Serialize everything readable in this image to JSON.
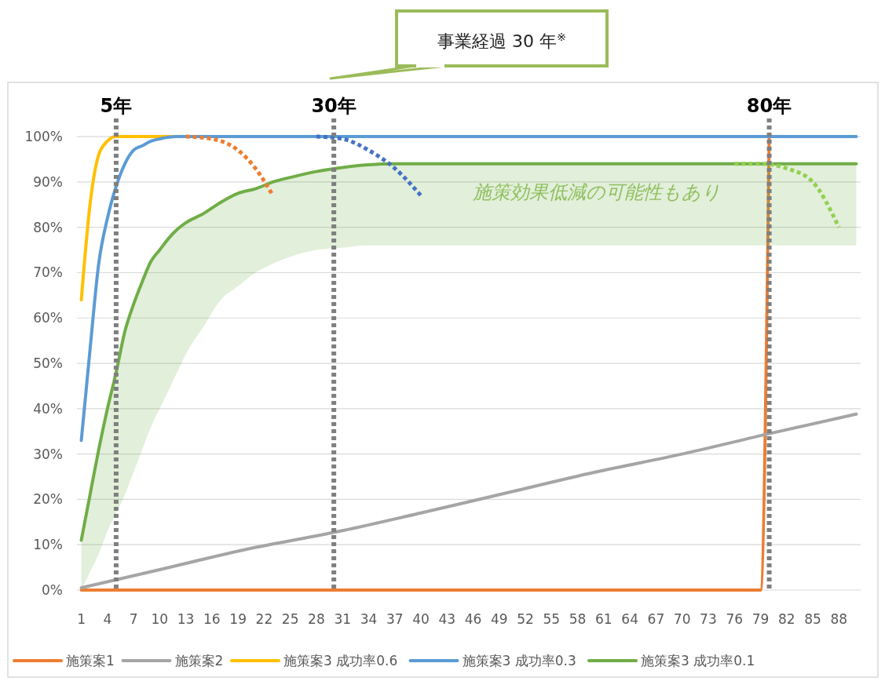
{
  "chart_data": {
    "type": "line",
    "xlim": [
      0.5,
      90.5
    ],
    "xticks": [
      1,
      4,
      7,
      10,
      13,
      16,
      19,
      22,
      25,
      28,
      31,
      34,
      37,
      40,
      43,
      46,
      49,
      52,
      55,
      58,
      61,
      64,
      67,
      70,
      73,
      76,
      79,
      82,
      85,
      88
    ],
    "ylim": [
      0,
      104
    ],
    "yticks": [
      {
        "value": 0,
        "label": "0%"
      },
      {
        "value": 10,
        "label": "10%"
      },
      {
        "value": 20,
        "label": "20%"
      },
      {
        "value": 30,
        "label": "30%"
      },
      {
        "value": 40,
        "label": "40%"
      },
      {
        "value": 50,
        "label": "50%"
      },
      {
        "value": 60,
        "label": "60%"
      },
      {
        "value": 70,
        "label": "70%"
      },
      {
        "value": 80,
        "label": "80%"
      },
      {
        "value": 90,
        "label": "90%"
      },
      {
        "value": 100,
        "label": "100%"
      }
    ],
    "grid": "y",
    "legend": "bottom",
    "line_style": "solid",
    "marker": "none",
    "series": [
      {
        "name": "施策案1",
        "color": "#ed7d31",
        "x": [
          1,
          79,
          80
        ],
        "values": [
          0,
          0,
          100
        ]
      },
      {
        "name": "施策案2",
        "color": "#a5a5a5",
        "x": [
          1,
          10,
          20,
          31,
          40,
          50,
          60,
          70,
          80,
          90
        ],
        "values": [
          0.5,
          4.5,
          9,
          13.1,
          17,
          21.5,
          26,
          30,
          34.5,
          38.8
        ]
      },
      {
        "name": "施策案3 成功率0.6",
        "color": "#ffc000",
        "x": [
          1,
          2,
          3,
          4,
          5,
          6,
          7,
          10,
          17
        ],
        "values": [
          64,
          85,
          96,
          99,
          100,
          100,
          100,
          100,
          100
        ]
      },
      {
        "name": "施策案3 成功率0.3",
        "color": "#5b9bd5",
        "x": [
          1,
          2,
          3,
          4,
          5,
          6,
          7,
          8,
          9,
          10,
          12,
          15,
          20,
          90
        ],
        "values": [
          33,
          53,
          72,
          82,
          89,
          94,
          97,
          98,
          99,
          99.5,
          100,
          100,
          100,
          100
        ]
      },
      {
        "name": "施策案3 成功率0.1",
        "color": "#70ad47",
        "x": [
          1,
          2,
          3,
          4,
          5,
          6,
          7,
          8,
          9,
          10,
          11,
          12,
          13,
          15,
          17,
          19,
          21,
          23,
          25,
          28,
          31,
          34,
          37,
          40,
          90
        ],
        "values": [
          11,
          21,
          31,
          40,
          48,
          57,
          63,
          68,
          72.5,
          75,
          77.5,
          79.5,
          81,
          83,
          85.5,
          87.5,
          88.5,
          90,
          91,
          92.3,
          93.2,
          93.8,
          94,
          94,
          94
        ],
        "lower": [
          0,
          4,
          8,
          13,
          17,
          21,
          26,
          31,
          36,
          40,
          44,
          48,
          52,
          58,
          64,
          67,
          70,
          72,
          73.5,
          75,
          75.5,
          76,
          76,
          76,
          76
        ],
        "upper": [
          11,
          21,
          31,
          40,
          48,
          57,
          63,
          68,
          72.5,
          75,
          77.5,
          79.5,
          81,
          83,
          85.5,
          87.5,
          88.5,
          90,
          91,
          92.3,
          93.2,
          93.8,
          94,
          94,
          94
        ]
      },
      {
        "color": "#ed7d31",
        "line_style": "dotted",
        "x": [
          13,
          16,
          19,
          21,
          23
        ],
        "values": [
          100,
          99.5,
          97,
          93,
          87
        ]
      },
      {
        "color": "#4472c4",
        "line_style": "dotted",
        "x": [
          28,
          31,
          34,
          37,
          40
        ],
        "values": [
          100,
          99.5,
          97,
          93,
          87
        ]
      },
      {
        "color": "#92d050",
        "line_style": "dotted",
        "x": [
          76,
          79,
          82,
          85,
          88
        ],
        "values": [
          94,
          94,
          93,
          90,
          80
        ]
      }
    ],
    "ref_lines": [
      {
        "axis": "x",
        "value": 5,
        "label": "5年",
        "color": "#7f7f7f",
        "line_style": "dotted"
      },
      {
        "axis": "x",
        "value": 30,
        "label": "30年",
        "color": "#7f7f7f",
        "line_style": "dotted"
      },
      {
        "axis": "x",
        "value": 80,
        "label": "80年",
        "color": "#7f7f7f",
        "line_style": "dotted"
      }
    ],
    "annotations": [
      "事業経過 30 年$^{※}$",
      "施策効果低減の可能性もあり"
    ]
  }
}
